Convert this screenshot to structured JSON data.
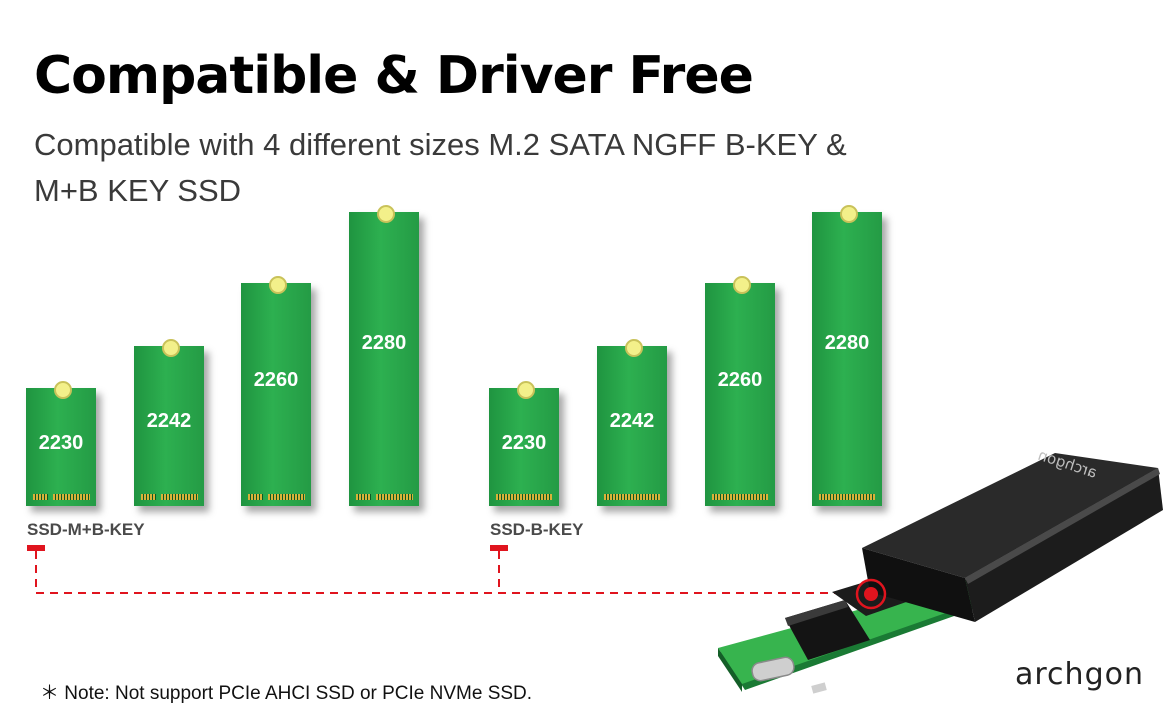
{
  "header": {
    "title": "Compatible & Driver Free",
    "subtitle_line1": "Compatible with 4 different sizes M.2 SATA NGFF B-KEY &",
    "subtitle_line2": "M+B KEY SSD"
  },
  "groups": [
    {
      "label": "SSD-M+B-KEY",
      "drives": [
        {
          "size": "2230"
        },
        {
          "size": "2242"
        },
        {
          "size": "2260"
        },
        {
          "size": "2280"
        }
      ]
    },
    {
      "label": "SSD-B-KEY",
      "drives": [
        {
          "size": "2230"
        },
        {
          "size": "2242"
        },
        {
          "size": "2260"
        },
        {
          "size": "2280"
        }
      ]
    }
  ],
  "enclosure": {
    "brand_print": "archgon"
  },
  "footer": {
    "note": "＊ Note: Not support PCIe AHCI SSD or PCIe NVMe SSD.",
    "brand": "archgon"
  },
  "colors": {
    "ssd_green": "#2aa34a",
    "connector_red": "#e0141e",
    "enclosure_black": "#1c1c1c"
  }
}
